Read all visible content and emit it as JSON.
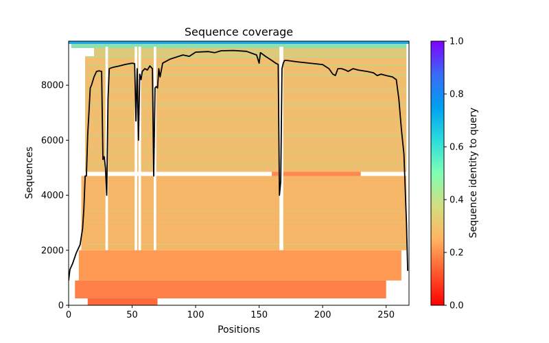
{
  "chart_data": {
    "type": "heatmap",
    "title": "Sequence coverage",
    "xlabel": "Positions",
    "ylabel": "Sequences",
    "xlim": [
      0,
      268
    ],
    "ylim": [
      0,
      9600
    ],
    "xticks": [
      0,
      50,
      100,
      150,
      200,
      250
    ],
    "yticks": [
      0,
      2000,
      4000,
      6000,
      8000
    ],
    "colorbar": {
      "label": "Sequence identity to query",
      "range": [
        0.0,
        1.0
      ],
      "ticks": [
        "0.0",
        "0.2",
        "0.4",
        "0.6",
        "0.8",
        "1.0"
      ],
      "colormap": "rainbow_r"
    },
    "coverage_line": {
      "color": "#000000",
      "x": [
        0,
        1,
        3,
        6,
        9,
        11,
        12,
        13,
        14,
        15,
        16,
        17,
        18,
        20,
        22,
        24,
        26,
        27,
        28,
        29,
        30,
        31,
        32,
        33,
        35,
        40,
        45,
        50,
        52,
        53,
        54,
        55,
        56,
        57,
        58,
        60,
        62,
        64,
        66,
        67,
        68,
        69,
        70,
        71,
        72,
        74,
        76,
        80,
        90,
        95,
        100,
        110,
        115,
        120,
        130,
        140,
        148,
        150,
        151,
        152,
        155,
        160,
        163,
        165,
        166,
        167,
        168,
        169,
        170,
        172,
        180,
        190,
        200,
        205,
        208,
        210,
        212,
        215,
        218,
        220,
        222,
        224,
        228,
        235,
        240,
        243,
        246,
        250,
        255,
        258,
        260,
        262,
        264,
        266,
        267
      ],
      "y": [
        900,
        1300,
        1500,
        1900,
        2200,
        2800,
        3500,
        4700,
        4700,
        6200,
        7000,
        7900,
        8000,
        8300,
        8500,
        8520,
        8500,
        5300,
        5400,
        5000,
        4000,
        7500,
        8600,
        8620,
        8650,
        8700,
        8760,
        8800,
        8780,
        6700,
        8600,
        6000,
        8400,
        8200,
        8500,
        8600,
        8550,
        8700,
        8600,
        4700,
        7900,
        7950,
        7900,
        8600,
        8300,
        8800,
        8850,
        8950,
        9100,
        9050,
        9200,
        9220,
        9180,
        9250,
        9260,
        9230,
        9100,
        8800,
        9180,
        9150,
        9050,
        8900,
        8800,
        8750,
        4000,
        4500,
        8600,
        8800,
        8900,
        8900,
        8850,
        8800,
        8750,
        8600,
        8400,
        8350,
        8600,
        8600,
        8550,
        8500,
        8550,
        8600,
        8550,
        8500,
        8450,
        8350,
        8400,
        8350,
        8300,
        8200,
        7500,
        6400,
        5500,
        3000,
        1250
      ]
    }
  }
}
